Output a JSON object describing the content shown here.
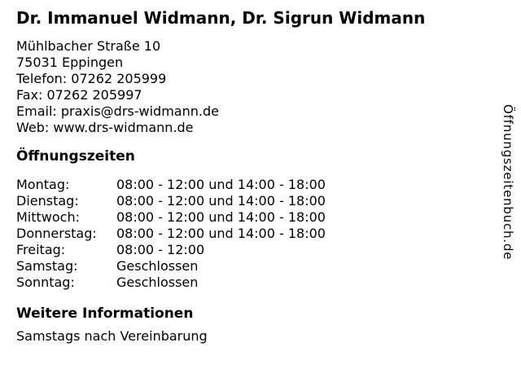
{
  "page": {
    "background_color": "#ffffff",
    "text_color": "#000000"
  },
  "header": {
    "title": "Dr. Immanuel Widmann, Dr. Sigrun Widmann"
  },
  "contact": {
    "street": "Mühlbacher Straße 10",
    "city": "75031 Eppingen",
    "phone": "Telefon: 07262 205999",
    "fax": "Fax: 07262 205997",
    "email": "Email: praxis@drs-widmann.de",
    "web": "Web: www.drs-widmann.de"
  },
  "opening_hours": {
    "heading": "Öffnungszeiten",
    "rows": [
      {
        "day": "Montag:",
        "hours": "08:00 - 12:00 und 14:00 - 18:00"
      },
      {
        "day": "Dienstag:",
        "hours": "08:00 - 12:00 und 14:00 - 18:00"
      },
      {
        "day": "Mittwoch:",
        "hours": "08:00 - 12:00 und 14:00 - 18:00"
      },
      {
        "day": "Donnerstag:",
        "hours": "08:00 - 12:00 und 14:00 - 18:00"
      },
      {
        "day": "Freitag:",
        "hours": "08:00 - 12:00"
      },
      {
        "day": "Samstag:",
        "hours": "Geschlossen"
      },
      {
        "day": "Sonntag:",
        "hours": "Geschlossen"
      }
    ]
  },
  "more_info": {
    "heading": "Weitere Informationen",
    "text": "Samstags nach Vereinbarung"
  },
  "watermark": {
    "text": "Öffnungszeitenbuch.de"
  }
}
